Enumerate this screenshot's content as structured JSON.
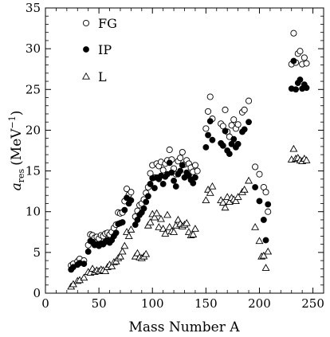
{
  "chart_data": {
    "type": "scatter",
    "title": "",
    "xlabel": "Mass Number A",
    "ylabel_main": "a",
    "ylabel_sub": "res",
    "ylabel_unit": "(MeV",
    "ylabel_exp": "−1",
    "ylabel_close": ")",
    "xlim": [
      0,
      260
    ],
    "ylim": [
      0,
      35
    ],
    "xticks": [
      "0",
      "50",
      "100",
      "150",
      "200",
      "250"
    ],
    "yticks": [
      "0",
      "5",
      "10",
      "15",
      "20",
      "25",
      "30",
      "35"
    ],
    "legend_position": "top-left",
    "grid": false,
    "series": [
      {
        "name": "FG",
        "marker": "open-circle",
        "x": [
          24,
          26,
          30,
          32,
          36,
          40,
          42,
          44,
          46,
          48,
          50,
          52,
          54,
          56,
          58,
          60,
          62,
          64,
          66,
          68,
          70,
          72,
          74,
          76,
          78,
          80,
          84,
          86,
          88,
          90,
          92,
          94,
          96,
          98,
          100,
          102,
          104,
          106,
          108,
          110,
          112,
          114,
          116,
          118,
          120,
          122,
          124,
          126,
          128,
          130,
          132,
          134,
          136,
          138,
          140,
          142,
          150,
          152,
          154,
          156,
          164,
          166,
          168,
          170,
          172,
          174,
          176,
          178,
          180,
          184,
          186,
          190,
          196,
          200,
          204,
          206,
          208,
          230,
          232,
          234,
          236,
          238,
          240,
          242,
          244
        ],
        "y": [
          3.4,
          3.6,
          3.9,
          4.2,
          4.0,
          5.9,
          7.2,
          7.1,
          6.8,
          6.9,
          6.7,
          7.1,
          7.0,
          7.3,
          7.4,
          7.2,
          7.5,
          8.0,
          8.4,
          9.9,
          9.8,
          9.9,
          11.3,
          12.8,
          12.1,
          12.4,
          9.4,
          10.1,
          10.8,
          11.0,
          11.5,
          12.3,
          13.0,
          14.7,
          15.7,
          14.2,
          15.9,
          15.6,
          16.1,
          15.1,
          15.9,
          16.3,
          17.6,
          16.4,
          15.3,
          14.6,
          16.2,
          16.6,
          17.3,
          15.8,
          16.3,
          15.9,
          15.4,
          14.9,
          15.7,
          15.0,
          20.2,
          22.3,
          24.1,
          21.4,
          20.8,
          20.5,
          22.5,
          19.8,
          19.2,
          20.6,
          21.3,
          20.2,
          20.7,
          22.2,
          22.5,
          23.6,
          15.5,
          14.6,
          13.0,
          12.4,
          10.0,
          28.1,
          31.9,
          28.3,
          29.4,
          29.7,
          28.1,
          28.9,
          28.2
        ],
        "color": "#000000"
      },
      {
        "name": "IP",
        "marker": "filled-circle",
        "x": [
          24,
          26,
          30,
          32,
          36,
          40,
          42,
          44,
          46,
          48,
          50,
          52,
          54,
          56,
          58,
          60,
          62,
          64,
          66,
          68,
          70,
          72,
          74,
          76,
          78,
          80,
          84,
          86,
          88,
          90,
          92,
          94,
          96,
          98,
          100,
          102,
          104,
          106,
          108,
          110,
          112,
          114,
          116,
          118,
          120,
          122,
          124,
          126,
          128,
          130,
          132,
          134,
          136,
          138,
          140,
          150,
          152,
          154,
          156,
          164,
          166,
          168,
          170,
          172,
          174,
          176,
          178,
          180,
          184,
          186,
          190,
          196,
          200,
          204,
          206,
          208,
          230,
          232,
          234,
          236,
          238,
          240,
          242,
          244
        ],
        "y": [
          2.9,
          3.2,
          3.5,
          3.7,
          3.6,
          5.1,
          6.4,
          6.3,
          5.9,
          6.0,
          5.8,
          6.1,
          6.0,
          6.3,
          6.5,
          6.2,
          6.5,
          7.0,
          7.4,
          8.5,
          8.6,
          8.7,
          10.2,
          11.7,
          11.0,
          11.4,
          8.4,
          9.0,
          9.6,
          9.9,
          10.4,
          11.2,
          11.9,
          13.4,
          14.1,
          12.9,
          14.2,
          14.0,
          14.4,
          13.4,
          14.3,
          14.6,
          16.0,
          14.8,
          13.8,
          13.1,
          14.6,
          15.0,
          15.7,
          14.2,
          14.8,
          14.4,
          13.9,
          13.5,
          14.2,
          17.9,
          19.4,
          21.1,
          18.8,
          18.4,
          18.1,
          19.9,
          17.5,
          17.1,
          18.3,
          18.9,
          17.9,
          18.3,
          19.8,
          20.1,
          21.0,
          13.0,
          11.3,
          9.0,
          6.5,
          10.9,
          25.1,
          28.5,
          25.0,
          25.8,
          26.2,
          25.1,
          25.6,
          25.2
        ],
        "color": "#000000"
      },
      {
        "name": "L",
        "marker": "open-triangle",
        "x": [
          24,
          26,
          30,
          32,
          36,
          40,
          42,
          44,
          46,
          48,
          50,
          52,
          54,
          56,
          58,
          60,
          62,
          64,
          66,
          68,
          70,
          72,
          74,
          76,
          78,
          80,
          84,
          86,
          88,
          90,
          92,
          94,
          96,
          98,
          100,
          102,
          104,
          106,
          108,
          110,
          112,
          114,
          116,
          118,
          120,
          122,
          124,
          126,
          128,
          130,
          132,
          134,
          136,
          138,
          140,
          150,
          152,
          154,
          156,
          164,
          166,
          168,
          170,
          172,
          174,
          176,
          178,
          180,
          184,
          186,
          190,
          196,
          200,
          202,
          204,
          206,
          208,
          230,
          232,
          234,
          236,
          238,
          240,
          242,
          244
        ],
        "y": [
          0.8,
          1.1,
          1.5,
          1.6,
          1.9,
          2.6,
          2.5,
          3.0,
          2.6,
          2.8,
          2.7,
          2.9,
          2.8,
          2.7,
          3.2,
          3.5,
          3.3,
          3.8,
          3.9,
          4.3,
          4.5,
          5.1,
          5.8,
          7.5,
          7.0,
          7.8,
          4.5,
          4.9,
          4.4,
          4.3,
          4.5,
          4.8,
          8.3,
          8.7,
          9.7,
          9.3,
          9.8,
          8.1,
          9.1,
          7.9,
          7.3,
          9.6,
          8.1,
          7.6,
          7.5,
          8.3,
          9.0,
          8.5,
          8.2,
          8.4,
          8.6,
          7.5,
          7.1,
          7.2,
          7.9,
          11.4,
          12.7,
          12.3,
          13.1,
          11.4,
          11.1,
          10.5,
          11.8,
          11.2,
          11.7,
          11.5,
          11.3,
          11.8,
          12.4,
          12.7,
          13.8,
          8.1,
          6.4,
          4.5,
          4.6,
          3.1,
          5.1,
          16.4,
          17.7,
          16.5,
          16.6,
          16.3,
          16.2,
          16.5,
          16.3
        ],
        "color": "#000000"
      }
    ]
  }
}
